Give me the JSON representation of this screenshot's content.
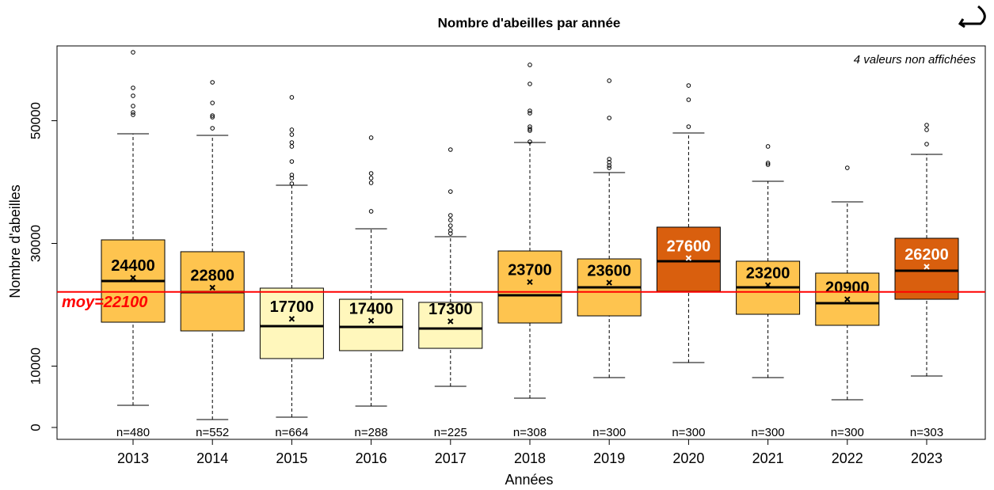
{
  "chart_data": {
    "type": "boxplot",
    "title": "Nombre d'abeilles par année",
    "x_label": "Années",
    "y_label": "Nombre d'abeilles",
    "annotation": "4 valeurs non affichées",
    "categories": [
      "2013",
      "2014",
      "2015",
      "2016",
      "2017",
      "2018",
      "2019",
      "2020",
      "2021",
      "2022",
      "2023"
    ],
    "boxes": [
      {
        "whislo": 3610,
        "q1": 17160,
        "med": 23870,
        "q3": 30580,
        "whishi": 47870,
        "mean": 24400,
        "color": "#fec44f",
        "label_color": "#000000",
        "outliers": [
          61160,
          55350,
          54060,
          52390,
          51350,
          50970
        ]
      },
      {
        "whislo": 1290,
        "q1": 15740,
        "med": 22060,
        "q3": 28650,
        "whishi": 47610,
        "mean": 22800,
        "color": "#fec44f",
        "label_color": "#000000",
        "outliers": [
          56260,
          52900,
          50840,
          50580,
          48770
        ]
      },
      {
        "whislo": 1680,
        "q1": 11230,
        "med": 16520,
        "q3": 22710,
        "whishi": 39480,
        "mean": 17700,
        "color": "#fff7bc",
        "label_color": "#000000",
        "outliers": [
          53810,
          48520,
          47740,
          46450,
          45810,
          43350,
          41160,
          40650,
          39740
        ]
      },
      {
        "whislo": 3480,
        "q1": 12520,
        "med": 16390,
        "q3": 20900,
        "whishi": 32390,
        "mean": 17400,
        "color": "#fff7bc",
        "label_color": "#000000",
        "outliers": [
          47230,
          41420,
          40650,
          39870,
          35230
        ]
      },
      {
        "whislo": 6710,
        "q1": 12900,
        "med": 16130,
        "q3": 20390,
        "whishi": 31100,
        "mean": 17300,
        "color": "#fff7bc",
        "label_color": "#000000",
        "outliers": [
          45290,
          38450,
          34580,
          33810,
          32900,
          32130,
          31610
        ]
      },
      {
        "whislo": 4770,
        "q1": 17030,
        "med": 21550,
        "q3": 28770,
        "whishi": 46450,
        "mean": 23700,
        "color": "#fec44f",
        "label_color": "#000000",
        "outliers": [
          59100,
          56000,
          51610,
          51230,
          49030,
          48650,
          48390,
          46580
        ]
      },
      {
        "whislo": 8130,
        "q1": 18190,
        "med": 22840,
        "q3": 27480,
        "whishi": 41550,
        "mean": 23600,
        "color": "#fec44f",
        "label_color": "#000000",
        "outliers": [
          56520,
          50450,
          43740,
          43230,
          42710,
          42320
        ]
      },
      {
        "whislo": 10580,
        "q1": 22190,
        "med": 27100,
        "q3": 32650,
        "whishi": 48000,
        "mean": 27600,
        "color": "#d95f0e",
        "label_color": "#ffffff",
        "outliers": [
          55740,
          53420,
          49030
        ]
      },
      {
        "whislo": 8130,
        "q1": 18450,
        "med": 22840,
        "q3": 27100,
        "whishi": 40130,
        "mean": 23200,
        "color": "#fec44f",
        "label_color": "#000000",
        "outliers": [
          45810,
          43100,
          42840
        ]
      },
      {
        "whislo": 4520,
        "q1": 16650,
        "med": 20260,
        "q3": 25160,
        "whishi": 36770,
        "mean": 20900,
        "color": "#fec44f",
        "label_color": "#000000",
        "outliers": [
          42320
        ]
      },
      {
        "whislo": 8390,
        "q1": 20900,
        "med": 25550,
        "q3": 30840,
        "whishi": 44520,
        "mean": 26200,
        "color": "#d95f0e",
        "label_color": "#ffffff",
        "outliers": [
          49290,
          48520,
          46190
        ]
      }
    ],
    "n_labels": [
      "n=480",
      "n=552",
      "n=664",
      "n=288",
      "n=225",
      "n=308",
      "n=300",
      "n=300",
      "n=300",
      "n=300",
      "n=303"
    ],
    "mean_line": {
      "value": 22100,
      "label": "moy=22100",
      "color": "#ff0000"
    },
    "ylim": [
      -1935,
      62194
    ],
    "yticks": [
      0,
      10000,
      30000,
      50000
    ]
  }
}
